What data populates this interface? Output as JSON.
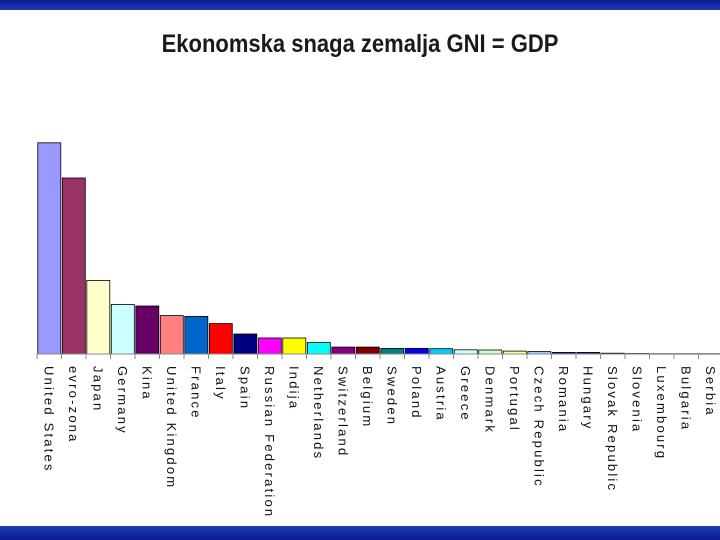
{
  "chart_data": {
    "type": "bar",
    "title": "Ekonomska snaga zemalja GNI = GDP",
    "xlabel": "",
    "ylabel": "",
    "ylim": [
      0,
      15000
    ],
    "grid": false,
    "categories": [
      "United States",
      "evro-zona",
      "Japan",
      "Germany",
      "Kina",
      "United Kingdom",
      "France",
      "Italy",
      "Spain",
      "Russian Federation",
      "Indija",
      "Netherlands",
      "Switzerland",
      "Belgium",
      "Sweden",
      "Poland",
      "Austria",
      "Greece",
      "Denmark",
      "Portugal",
      "Czech Republic",
      "Romania",
      "Hungary",
      "Slovak Republic",
      "Slovenia",
      "Luxembourg",
      "Bulgaria",
      "Serbia"
    ],
    "values": [
      13200,
      11000,
      4600,
      3100,
      3000,
      2400,
      2350,
      1900,
      1250,
      1000,
      1000,
      720,
      430,
      430,
      350,
      350,
      330,
      260,
      250,
      180,
      150,
      100,
      100,
      50,
      30,
      20,
      20,
      20
    ],
    "colors": [
      "#9999ff",
      "#993366",
      "#ffffcc",
      "#ccffff",
      "#660066",
      "#ff8080",
      "#0066cc",
      "#ff0000",
      "#000080",
      "#ff00ff",
      "#ffff00",
      "#00ffff",
      "#800080",
      "#800000",
      "#008080",
      "#0000ff",
      "#00ccff",
      "#ccffff",
      "#ccffcc",
      "#ffff99",
      "#99ccff",
      "#333399",
      "#333399",
      "#333399",
      "#333399",
      "#333399",
      "#333399",
      "#333399"
    ]
  }
}
